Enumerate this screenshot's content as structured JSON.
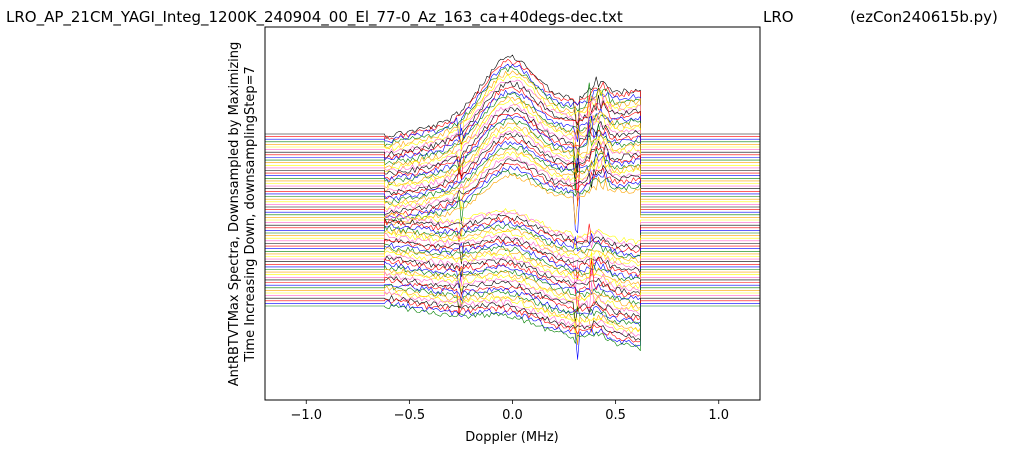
{
  "title": {
    "left": "LRO_AP_21CM_YAGI_Integ_1200K_240904_00_El_77-0_Az_163_ca+40degs-dec.txt",
    "middle": "LRO",
    "right": "(ezCon240615b.py)"
  },
  "chart_data": {
    "type": "line",
    "xlabel": "Doppler (MHz)",
    "ylabel_line1": "AntRBTVTMax Spectra, Downsampled by Maximizing",
    "ylabel_line2": "Time Increasing Down, downsamplingStep=7",
    "xlim": [
      -1.2,
      1.2
    ],
    "xticks": [
      -1.0,
      -0.5,
      0.0,
      0.5,
      1.0
    ],
    "xtick_labels": [
      "−1.0",
      "−0.5",
      "0.0",
      "0.5",
      "1.0"
    ],
    "yticks_shown": false,
    "data_x_range": [
      -0.62,
      0.62
    ],
    "series_count": 67,
    "color_cycle": [
      "#000000",
      "#ff0000",
      "#0000ff",
      "#008000",
      "#ffa500",
      "#ffff00",
      "#ff66cc"
    ],
    "series_line_width": 0.6
  }
}
